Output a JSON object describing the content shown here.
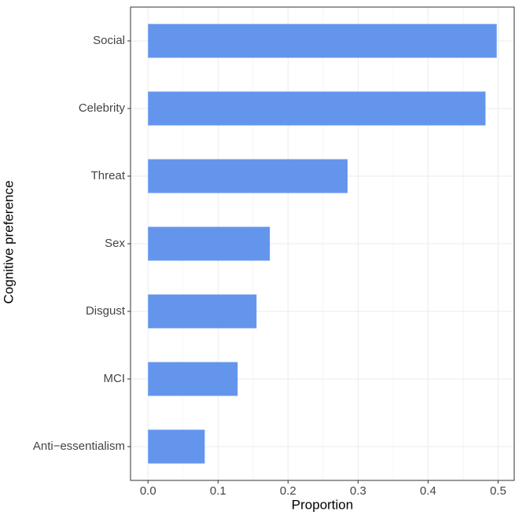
{
  "chart_data": {
    "type": "barh",
    "x_label": "Proportion",
    "y_label": "Cognitive preference",
    "categories": [
      "Social",
      "Celebrity",
      "Threat",
      "Sex",
      "Disgust",
      "MCI",
      "Anti−essentialism"
    ],
    "values": [
      0.498,
      0.482,
      0.285,
      0.174,
      0.155,
      0.128,
      0.081
    ],
    "color": "#6495ed",
    "xlim": [
      -0.025,
      0.523
    ],
    "xticks": [
      {
        "value": 0,
        "label": "0.0"
      },
      0.1,
      0.2,
      0.3,
      0.4,
      0.5
    ],
    "grid": true
  }
}
